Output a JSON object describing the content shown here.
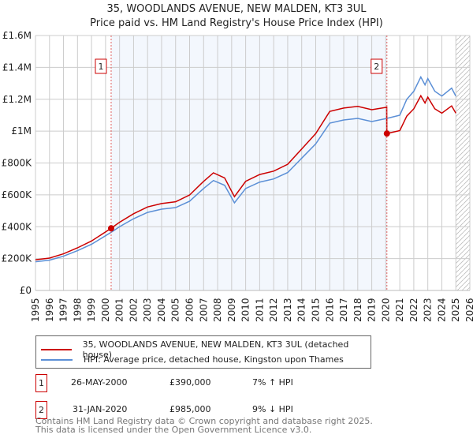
{
  "title": "35, WOODLANDS AVENUE, NEW MALDEN, KT3 3UL",
  "subtitle": "Price paid vs. HM Land Registry's House Price Index (HPI)",
  "chart_data": {
    "type": "line",
    "title": "35, WOODLANDS AVENUE, NEW MALDEN, KT3 3UL",
    "xlim": [
      1995,
      2026
    ],
    "ylim": [
      0,
      1600000
    ],
    "x_ticks": [
      "1995",
      "1996",
      "1997",
      "1998",
      "1999",
      "2000",
      "2001",
      "2002",
      "2003",
      "2004",
      "2005",
      "2006",
      "2007",
      "2008",
      "2009",
      "2010",
      "2011",
      "2012",
      "2013",
      "2014",
      "2015",
      "2016",
      "2017",
      "2018",
      "2019",
      "2020",
      "2021",
      "2022",
      "2023",
      "2024",
      "2025",
      "2026"
    ],
    "y_ticks": [
      {
        "v": 0,
        "l": "£0"
      },
      {
        "v": 200000,
        "l": "£200K"
      },
      {
        "v": 400000,
        "l": "£400K"
      },
      {
        "v": 600000,
        "l": "£600K"
      },
      {
        "v": 800000,
        "l": "£800K"
      },
      {
        "v": 1000000,
        "l": "£1M"
      },
      {
        "v": 1200000,
        "l": "£1.2M"
      },
      {
        "v": 1400000,
        "l": "£1.4M"
      },
      {
        "v": 1600000,
        "l": "£1.6M"
      }
    ],
    "hpi": {
      "name": "HPI: Average price, detached house, Kingston upon Thames",
      "color": "#5b8fd6",
      "x": [
        1995,
        1996,
        1997,
        1998,
        1999,
        2000.4,
        2001,
        2002,
        2003,
        2004,
        2005,
        2006,
        2007,
        2007.7,
        2008.5,
        2009.2,
        2010,
        2011,
        2012,
        2013,
        2014,
        2015,
        2016,
        2017,
        2018,
        2019,
        2020.08,
        2021,
        2021.5,
        2022,
        2022.5,
        2022.8,
        2023,
        2023.5,
        2024,
        2024.7,
        2025
      ],
      "y": [
        180000,
        190000,
        215000,
        250000,
        290000,
        365000,
        400000,
        450000,
        490000,
        510000,
        520000,
        560000,
        640000,
        690000,
        660000,
        550000,
        640000,
        680000,
        700000,
        740000,
        830000,
        920000,
        1050000,
        1070000,
        1080000,
        1060000,
        1080000,
        1100000,
        1200000,
        1250000,
        1340000,
        1290000,
        1330000,
        1250000,
        1220000,
        1270000,
        1220000
      ]
    },
    "property": {
      "name": "35, WOODLANDS AVENUE, NEW MALDEN, KT3 3UL (detached house)",
      "color": "#cc0000",
      "factor_before": 1.07,
      "factor_after": 0.912
    },
    "sales": [
      {
        "n": "1",
        "x": 2000.4,
        "y": 390000
      },
      {
        "n": "2",
        "x": 2020.08,
        "y": 985000
      }
    ],
    "projection_from": 2025.0
  },
  "legend": [
    "35, WOODLANDS AVENUE, NEW MALDEN, KT3 3UL (detached house)",
    "HPI: Average price, detached house, Kingston upon Thames"
  ],
  "table": [
    {
      "n": "1",
      "date": "26-MAY-2000",
      "price": "£390,000",
      "hpi": "7% ↑ HPI"
    },
    {
      "n": "2",
      "date": "31-JAN-2020",
      "price": "£985,000",
      "hpi": "9% ↓ HPI"
    }
  ],
  "footer": [
    "Contains HM Land Registry data © Crown copyright and database right 2025.",
    "This data is licensed under the Open Government Licence v3.0."
  ]
}
